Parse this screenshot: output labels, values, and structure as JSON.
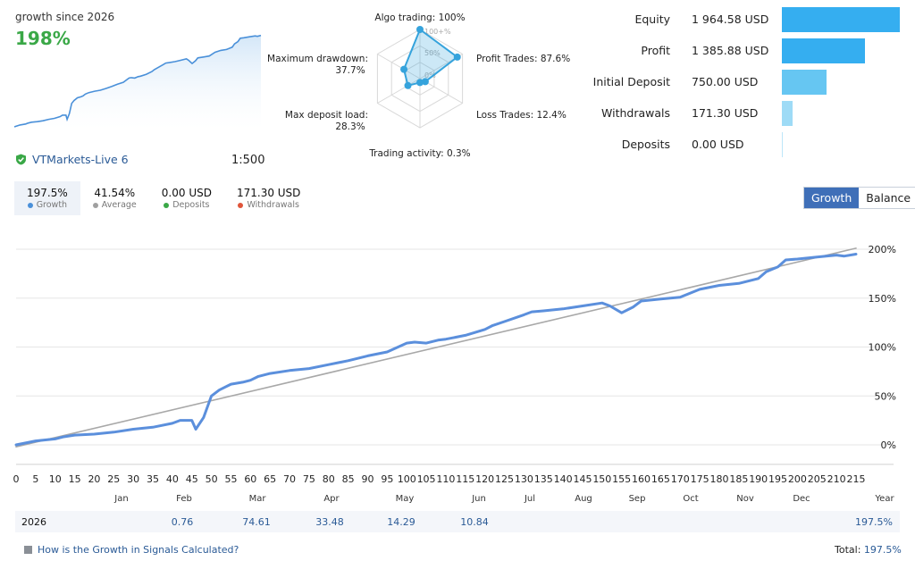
{
  "summary": {
    "growth_since": "growth since 2026",
    "growth_pct": "198%",
    "broker": "VTMarkets-Live 6",
    "leverage": "1:500"
  },
  "radar": {
    "axes": [
      {
        "label": "Algo trading: 100%",
        "value": 100
      },
      {
        "label": "Profit Trades: 87.6%",
        "value": 87.6
      },
      {
        "label": "Loss Trades: 12.4%",
        "value": 12.4
      },
      {
        "label": "Trading activity: 0.3%",
        "value": 0.3
      },
      {
        "label": "Max deposit load:",
        "label2": "28.3%",
        "value": 28.3
      },
      {
        "label": "Maximum drawdown:",
        "label2": "37.7%",
        "value": 37.7
      }
    ],
    "ring_labels": [
      "100+%",
      "50%",
      "0%"
    ],
    "accent": "#35a3dc"
  },
  "balance_bars": [
    {
      "label": "Equity",
      "value_text": "1 964.58 USD",
      "value": 1964.58,
      "color": "#35aef0"
    },
    {
      "label": "Profit",
      "value_text": "1 385.88 USD",
      "value": 1385.88,
      "color": "#35aef0"
    },
    {
      "label": "Initial Deposit",
      "value_text": "750.00 USD",
      "value": 750.0,
      "color": "#66c6f2"
    },
    {
      "label": "Withdrawals",
      "value_text": "171.30 USD",
      "value": 171.3,
      "color": "#9edbf6"
    },
    {
      "label": "Deposits",
      "value_text": "0.00 USD",
      "value": 0.0,
      "color": "#9edbf6"
    }
  ],
  "stats": [
    {
      "value": "197.5%",
      "label": "Growth",
      "color": "#4a90d9"
    },
    {
      "value": "41.54%",
      "label": "Average",
      "color": "#a0a0a0"
    },
    {
      "value": "0.00 USD",
      "label": "Deposits",
      "color": "#3aa847"
    },
    {
      "value": "171.30 USD",
      "label": "Withdrawals",
      "color": "#e0553a"
    }
  ],
  "tabs": {
    "growth": "Growth",
    "balance": "Balance"
  },
  "chart_data": {
    "type": "line",
    "xlim": [
      0,
      216
    ],
    "ylim": [
      -20,
      225
    ],
    "x_ticks": [
      0,
      5,
      10,
      15,
      20,
      25,
      30,
      35,
      40,
      45,
      50,
      55,
      60,
      65,
      70,
      75,
      80,
      85,
      90,
      95,
      100,
      105,
      110,
      115,
      120,
      125,
      130,
      135,
      140,
      145,
      150,
      155,
      160,
      165,
      170,
      175,
      180,
      185,
      190,
      195,
      200,
      205,
      210,
      215
    ],
    "y_ticks": [
      0,
      50,
      100,
      150,
      200
    ],
    "y_tick_labels": [
      "0%",
      "50%",
      "100%",
      "150%",
      "200%"
    ],
    "grid": true,
    "months": [
      "Jan",
      "Feb",
      "Mar",
      "Apr",
      "May",
      "Jun",
      "Jul",
      "Aug",
      "Sep",
      "Oct",
      "Nov",
      "Dec"
    ],
    "year_label": "Year",
    "series": [
      {
        "color": "#5b8fdc",
        "x": [
          0,
          5,
          10,
          12,
          15,
          20,
          25,
          30,
          35,
          40,
          42,
          45,
          46,
          48,
          50,
          52,
          55,
          58,
          60,
          62,
          65,
          70,
          75,
          80,
          85,
          90,
          95,
          100,
          102,
          105,
          108,
          110,
          115,
          120,
          122,
          125,
          130,
          132,
          135,
          140,
          145,
          150,
          152,
          155,
          158,
          160,
          165,
          170,
          175,
          180,
          185,
          190,
          192,
          195,
          197,
          200,
          205,
          210,
          212,
          215
        ],
        "y": [
          0,
          4,
          6,
          8,
          10,
          11,
          13,
          16,
          18,
          22,
          25,
          25,
          16,
          28,
          50,
          56,
          62,
          64,
          66,
          70,
          73,
          76,
          78,
          82,
          86,
          91,
          95,
          104,
          105,
          104,
          107,
          108,
          112,
          118,
          122,
          126,
          133,
          136,
          137,
          139,
          142,
          145,
          142,
          135,
          141,
          147,
          149,
          151,
          159,
          163,
          165,
          170,
          177,
          182,
          189,
          190,
          192,
          194,
          193,
          195
        ]
      },
      {
        "color": "#a8a8a8",
        "x": [
          0,
          215
        ],
        "y": [
          -2,
          201
        ]
      }
    ]
  },
  "year_row": {
    "year": "2026",
    "months": [
      {
        "month": "Jan",
        "value": ""
      },
      {
        "month": "Feb",
        "value": "0.76"
      },
      {
        "month": "Mar",
        "value": "74.61"
      },
      {
        "month": "Apr",
        "value": "33.48"
      },
      {
        "month": "May",
        "value": "14.29"
      },
      {
        "month": "Jun",
        "value": "10.84"
      }
    ],
    "year_total": "197.5%"
  },
  "footer": {
    "help_link": "How is the Growth in Signals Calculated?",
    "total_label": "Total:",
    "total_value": "197.5%"
  }
}
